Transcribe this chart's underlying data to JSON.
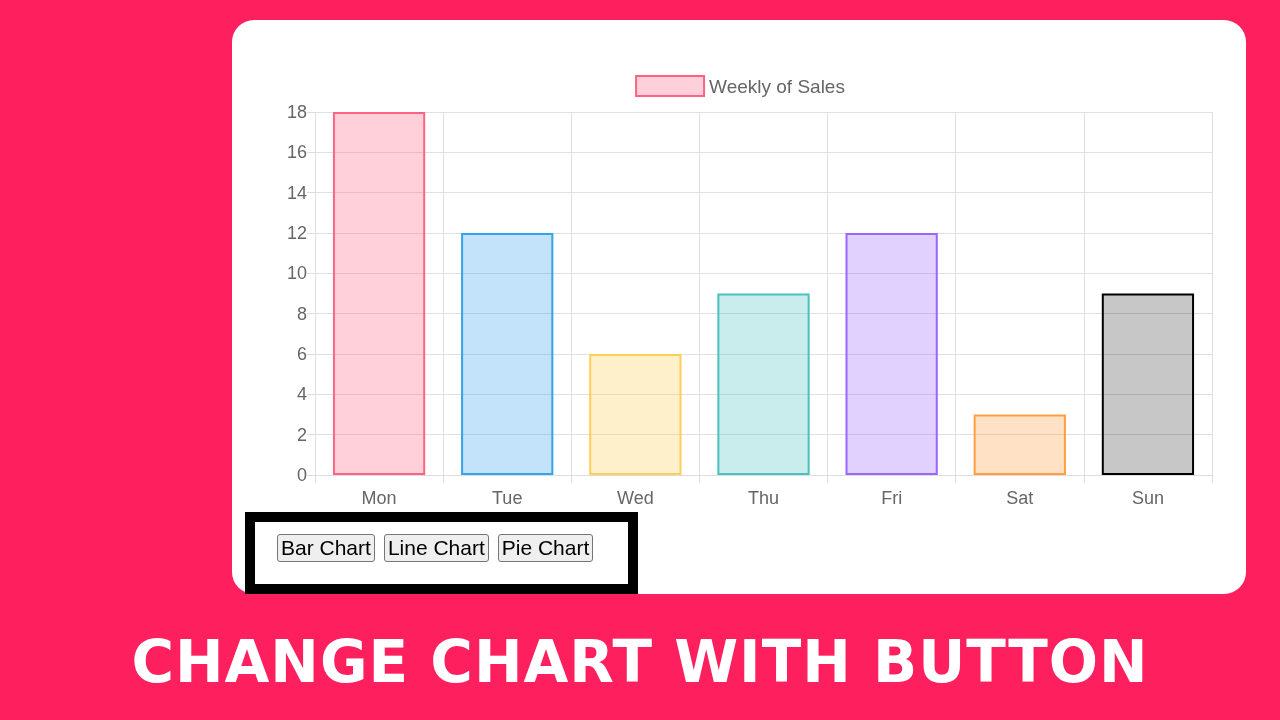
{
  "chart_data": {
    "type": "bar",
    "title": "CHANGE CHART WITH BUTTON",
    "categories": [
      "Mon",
      "Tue",
      "Wed",
      "Thu",
      "Fri",
      "Sat",
      "Sun"
    ],
    "series": [
      {
        "name": "Weekly of Sales",
        "values": [
          18,
          12,
          6,
          9,
          12,
          3,
          9
        ],
        "colors": [
          "#ff6384",
          "#36a2eb",
          "#ffce56",
          "#4bc0c0",
          "#9966ff",
          "#ff9f40",
          "#000000"
        ]
      }
    ],
    "ylim": [
      0,
      18
    ],
    "yticks": [
      0,
      2,
      4,
      6,
      8,
      10,
      12,
      14,
      16,
      18
    ],
    "grid": true,
    "legend": "top",
    "annotations": [
      "Bar Chart",
      "Line Chart",
      "Pie Chart"
    ]
  }
}
